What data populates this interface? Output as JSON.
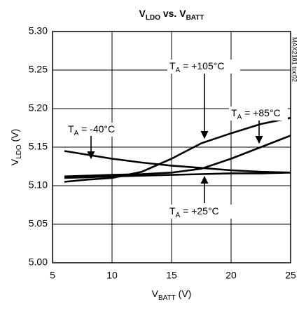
{
  "chart_data": {
    "type": "line",
    "title": [
      {
        "text": "V"
      },
      {
        "text": "LDO",
        "sub": true
      },
      {
        "text": " vs. V"
      },
      {
        "text": "BATT",
        "sub": true
      }
    ],
    "x_label": [
      {
        "text": "V"
      },
      {
        "text": "BATT",
        "sub": true
      },
      {
        "text": " (V)"
      }
    ],
    "y_label": [
      {
        "text": "V"
      },
      {
        "text": "LDO",
        "sub": true
      },
      {
        "text": " (V)"
      }
    ],
    "watermark": "MAX2181 toc02",
    "x": [
      6,
      8,
      10,
      12.5,
      15,
      17.5,
      20,
      22.5,
      25
    ],
    "series": [
      {
        "color": "#000000",
        "values": [
          5.145,
          5.14,
          5.135,
          5.13,
          5.126,
          5.123,
          5.12,
          5.118,
          5.117
        ]
      },
      {
        "color": "#000000",
        "values": [
          5.11,
          5.111,
          5.112,
          5.113,
          5.114,
          5.115,
          5.116,
          5.116,
          5.117
        ]
      },
      {
        "color": "#000000",
        "values": [
          5.112,
          5.113,
          5.114,
          5.115,
          5.117,
          5.122,
          5.135,
          5.15,
          5.165
        ]
      },
      {
        "color": "#000000",
        "values": [
          5.105,
          5.108,
          5.11,
          5.118,
          5.135,
          5.155,
          5.168,
          5.18,
          5.188
        ]
      }
    ],
    "annotations": [
      [
        {
          "text": "T"
        },
        {
          "text": "A",
          "sub": true
        },
        {
          "text": " = -40°C"
        }
      ],
      [
        {
          "text": "T"
        },
        {
          "text": "A",
          "sub": true
        },
        {
          "text": " = +25°C"
        }
      ],
      [
        {
          "text": "T"
        },
        {
          "text": "A",
          "sub": true
        },
        {
          "text": " = +85°C"
        }
      ],
      [
        {
          "text": "T"
        },
        {
          "text": "A",
          "sub": true
        },
        {
          "text": " = +105°C"
        }
      ]
    ],
    "xlim": [
      5,
      25
    ],
    "xticks": [
      5,
      10,
      15,
      20,
      25
    ],
    "ylim": [
      5.0,
      5.3
    ],
    "yticks": [
      {
        "value": 5.0,
        "label": "5.00"
      },
      5.05,
      {
        "value": 5.1,
        "label": "5.10"
      },
      5.15,
      {
        "value": 5.2,
        "label": "5.20"
      },
      5.25,
      {
        "value": 5.3,
        "label": "5.30"
      }
    ],
    "grid": true
  }
}
